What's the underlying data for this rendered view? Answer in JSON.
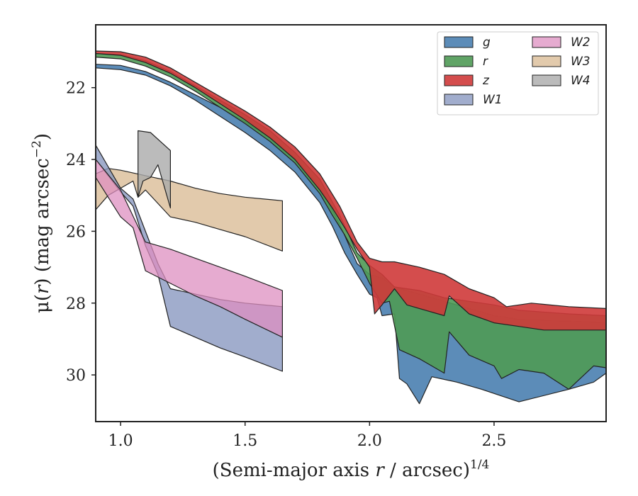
{
  "chart_data": {
    "type": "area",
    "xlabel_main": "(Semi-major axis ",
    "xlabel_var": "r",
    "xlabel_tail": " / arcsec)",
    "xlabel_sup": "1/4",
    "ylabel_main": "μ(",
    "ylabel_var": "r",
    "ylabel_mid": ") (mag arcsec",
    "ylabel_sup": "−2",
    "ylabel_end": ")",
    "xlim": [
      0.9,
      2.95
    ],
    "ylim": [
      31.3,
      20.25
    ],
    "y_inverted": true,
    "x_ticks": [
      1.0,
      1.5,
      2.0,
      2.5
    ],
    "x_tick_labels": [
      "1.0",
      "1.5",
      "2.0",
      "2.5"
    ],
    "y_ticks": [
      22,
      24,
      26,
      28,
      30
    ],
    "y_tick_labels": [
      "22",
      "24",
      "26",
      "28",
      "30"
    ],
    "legend_position": "top-right",
    "legend_columns": 2,
    "series": [
      {
        "name": "W3",
        "color": "#d8b890",
        "opacity": 0.75,
        "upper": [
          [
            0.9,
            24.4
          ],
          [
            0.95,
            24.25
          ],
          [
            1.0,
            24.3
          ],
          [
            1.1,
            24.45
          ],
          [
            1.2,
            24.6
          ],
          [
            1.3,
            24.8
          ],
          [
            1.4,
            24.95
          ],
          [
            1.5,
            25.05
          ],
          [
            1.65,
            25.15
          ]
        ],
        "lower": [
          [
            0.9,
            25.4
          ],
          [
            0.95,
            25.0
          ],
          [
            1.0,
            24.8
          ],
          [
            1.05,
            24.6
          ],
          [
            1.07,
            25.05
          ],
          [
            1.1,
            24.85
          ],
          [
            1.2,
            25.6
          ],
          [
            1.3,
            25.75
          ],
          [
            1.4,
            25.95
          ],
          [
            1.5,
            26.15
          ],
          [
            1.65,
            26.55
          ]
        ]
      },
      {
        "name": "W4",
        "color": "#aaaaaa",
        "opacity": 0.8,
        "upper": [
          [
            1.07,
            23.2
          ],
          [
            1.12,
            23.25
          ],
          [
            1.2,
            23.75
          ]
        ],
        "lower": [
          [
            1.07,
            25.05
          ],
          [
            1.09,
            24.6
          ],
          [
            1.12,
            24.5
          ],
          [
            1.15,
            24.15
          ],
          [
            1.2,
            25.35
          ]
        ]
      },
      {
        "name": "W1",
        "color": "#8a98c0",
        "opacity": 0.8,
        "upper": [
          [
            0.9,
            23.6
          ],
          [
            1.0,
            24.8
          ],
          [
            1.05,
            25.1
          ],
          [
            1.1,
            26.0
          ],
          [
            1.15,
            26.9
          ],
          [
            1.2,
            27.6
          ],
          [
            1.3,
            27.75
          ],
          [
            1.4,
            27.9
          ],
          [
            1.5,
            28.0
          ],
          [
            1.65,
            28.1
          ]
        ],
        "lower": [
          [
            0.9,
            24.0
          ],
          [
            1.0,
            24.9
          ],
          [
            1.05,
            25.3
          ],
          [
            1.1,
            26.4
          ],
          [
            1.15,
            27.2
          ],
          [
            1.2,
            28.65
          ],
          [
            1.3,
            28.95
          ],
          [
            1.4,
            29.25
          ],
          [
            1.5,
            29.5
          ],
          [
            1.65,
            29.9
          ]
        ]
      },
      {
        "name": "W2",
        "color": "#dd8fc0",
        "opacity": 0.75,
        "upper": [
          [
            0.9,
            24.0
          ],
          [
            1.0,
            24.85
          ],
          [
            1.1,
            26.3
          ],
          [
            1.2,
            26.5
          ],
          [
            1.3,
            26.75
          ],
          [
            1.4,
            27.0
          ],
          [
            1.5,
            27.25
          ],
          [
            1.65,
            27.65
          ]
        ],
        "lower": [
          [
            0.9,
            24.5
          ],
          [
            1.0,
            25.6
          ],
          [
            1.05,
            25.9
          ],
          [
            1.1,
            27.1
          ],
          [
            1.2,
            27.45
          ],
          [
            1.3,
            27.8
          ],
          [
            1.4,
            28.1
          ],
          [
            1.5,
            28.45
          ],
          [
            1.65,
            28.95
          ]
        ]
      },
      {
        "name": "g",
        "color": "#4a7fb0",
        "opacity": 0.9,
        "upper": [
          [
            0.9,
            21.35
          ],
          [
            1.0,
            21.38
          ],
          [
            1.1,
            21.55
          ],
          [
            1.2,
            21.85
          ],
          [
            1.3,
            22.2
          ],
          [
            1.4,
            22.55
          ],
          [
            1.5,
            22.95
          ],
          [
            1.6,
            23.4
          ],
          [
            1.7,
            23.95
          ],
          [
            1.8,
            24.75
          ],
          [
            1.88,
            25.8
          ],
          [
            1.95,
            26.9
          ],
          [
            2.0,
            27.2
          ],
          [
            2.05,
            27.3
          ],
          [
            2.1,
            27.55
          ],
          [
            2.2,
            27.75
          ],
          [
            2.3,
            27.95
          ],
          [
            2.5,
            28.35
          ],
          [
            2.6,
            28.45
          ],
          [
            2.8,
            28.5
          ],
          [
            2.95,
            28.55
          ]
        ],
        "lower": [
          [
            0.9,
            21.45
          ],
          [
            1.0,
            21.5
          ],
          [
            1.1,
            21.65
          ],
          [
            1.2,
            21.95
          ],
          [
            1.3,
            22.35
          ],
          [
            1.4,
            22.8
          ],
          [
            1.5,
            23.25
          ],
          [
            1.6,
            23.75
          ],
          [
            1.7,
            24.35
          ],
          [
            1.8,
            25.2
          ],
          [
            1.85,
            25.85
          ],
          [
            1.9,
            26.6
          ],
          [
            1.95,
            27.2
          ],
          [
            2.0,
            27.75
          ],
          [
            2.03,
            27.85
          ],
          [
            2.05,
            28.35
          ],
          [
            2.1,
            28.3
          ],
          [
            2.12,
            30.1
          ],
          [
            2.15,
            30.25
          ],
          [
            2.2,
            30.8
          ],
          [
            2.25,
            30.05
          ],
          [
            2.35,
            30.2
          ],
          [
            2.45,
            30.4
          ],
          [
            2.6,
            30.75
          ],
          [
            2.8,
            30.4
          ],
          [
            2.9,
            30.2
          ],
          [
            2.95,
            29.95
          ]
        ]
      },
      {
        "name": "r",
        "color": "#4f9a55",
        "opacity": 0.9,
        "upper": [
          [
            0.9,
            21.05
          ],
          [
            1.0,
            21.08
          ],
          [
            1.1,
            21.25
          ],
          [
            1.2,
            21.55
          ],
          [
            1.3,
            21.95
          ],
          [
            1.4,
            22.35
          ],
          [
            1.5,
            22.75
          ],
          [
            1.6,
            23.2
          ],
          [
            1.7,
            23.8
          ],
          [
            1.8,
            24.55
          ],
          [
            1.88,
            25.55
          ],
          [
            1.95,
            26.6
          ],
          [
            2.0,
            26.95
          ],
          [
            2.05,
            27.2
          ],
          [
            2.1,
            27.55
          ],
          [
            2.2,
            27.65
          ],
          [
            2.3,
            27.85
          ],
          [
            2.5,
            28.05
          ],
          [
            2.6,
            28.2
          ],
          [
            2.8,
            28.3
          ],
          [
            2.95,
            28.35
          ]
        ],
        "lower": [
          [
            0.9,
            21.15
          ],
          [
            1.0,
            21.2
          ],
          [
            1.1,
            21.4
          ],
          [
            1.2,
            21.7
          ],
          [
            1.3,
            22.1
          ],
          [
            1.4,
            22.55
          ],
          [
            1.5,
            23.0
          ],
          [
            1.6,
            23.5
          ],
          [
            1.7,
            24.1
          ],
          [
            1.8,
            24.95
          ],
          [
            1.85,
            25.55
          ],
          [
            1.9,
            26.1
          ],
          [
            1.95,
            26.75
          ],
          [
            2.0,
            27.45
          ],
          [
            2.05,
            28.0
          ],
          [
            2.08,
            27.95
          ],
          [
            2.12,
            29.3
          ],
          [
            2.2,
            29.55
          ],
          [
            2.3,
            29.95
          ],
          [
            2.32,
            28.8
          ],
          [
            2.4,
            29.45
          ],
          [
            2.5,
            29.75
          ],
          [
            2.53,
            30.1
          ],
          [
            2.6,
            29.85
          ],
          [
            2.7,
            29.95
          ],
          [
            2.8,
            30.4
          ],
          [
            2.9,
            29.75
          ],
          [
            2.95,
            29.8
          ]
        ]
      },
      {
        "name": "z",
        "color": "#cf3a3a",
        "opacity": 0.9,
        "upper": [
          [
            0.9,
            20.98
          ],
          [
            1.0,
            21.0
          ],
          [
            1.1,
            21.15
          ],
          [
            1.2,
            21.45
          ],
          [
            1.3,
            21.85
          ],
          [
            1.4,
            22.25
          ],
          [
            1.5,
            22.65
          ],
          [
            1.6,
            23.1
          ],
          [
            1.7,
            23.65
          ],
          [
            1.8,
            24.4
          ],
          [
            1.88,
            25.3
          ],
          [
            1.95,
            26.3
          ],
          [
            2.0,
            26.75
          ],
          [
            2.05,
            26.85
          ],
          [
            2.1,
            26.85
          ],
          [
            2.2,
            27.0
          ],
          [
            2.3,
            27.2
          ],
          [
            2.4,
            27.6
          ],
          [
            2.5,
            27.85
          ],
          [
            2.55,
            28.1
          ],
          [
            2.65,
            28.0
          ],
          [
            2.8,
            28.1
          ],
          [
            2.95,
            28.15
          ]
        ],
        "lower": [
          [
            0.9,
            21.05
          ],
          [
            1.0,
            21.1
          ],
          [
            1.1,
            21.3
          ],
          [
            1.2,
            21.6
          ],
          [
            1.3,
            22.0
          ],
          [
            1.4,
            22.45
          ],
          [
            1.5,
            22.9
          ],
          [
            1.6,
            23.4
          ],
          [
            1.7,
            24.0
          ],
          [
            1.8,
            24.85
          ],
          [
            1.85,
            25.35
          ],
          [
            1.9,
            25.9
          ],
          [
            1.95,
            26.5
          ],
          [
            2.0,
            27.0
          ],
          [
            2.02,
            28.3
          ],
          [
            2.05,
            28.05
          ],
          [
            2.1,
            27.6
          ],
          [
            2.15,
            28.05
          ],
          [
            2.2,
            28.15
          ],
          [
            2.3,
            28.35
          ],
          [
            2.32,
            27.8
          ],
          [
            2.4,
            28.3
          ],
          [
            2.5,
            28.55
          ],
          [
            2.6,
            28.65
          ],
          [
            2.7,
            28.75
          ],
          [
            2.8,
            28.75
          ],
          [
            2.95,
            28.75
          ]
        ]
      }
    ]
  },
  "legend": {
    "items": [
      {
        "label": "g",
        "color": "#4a7fb0",
        "opacity": 0.9
      },
      {
        "label": "r",
        "color": "#4f9a55",
        "opacity": 0.9
      },
      {
        "label": "z",
        "color": "#cf3a3a",
        "opacity": 0.9
      },
      {
        "label": "W1",
        "color": "#8a98c0",
        "opacity": 0.8
      },
      {
        "label": "W2",
        "color": "#dd8fc0",
        "opacity": 0.75
      },
      {
        "label": "W3",
        "color": "#d8b890",
        "opacity": 0.75
      },
      {
        "label": "W4",
        "color": "#aaaaaa",
        "opacity": 0.8
      }
    ]
  }
}
